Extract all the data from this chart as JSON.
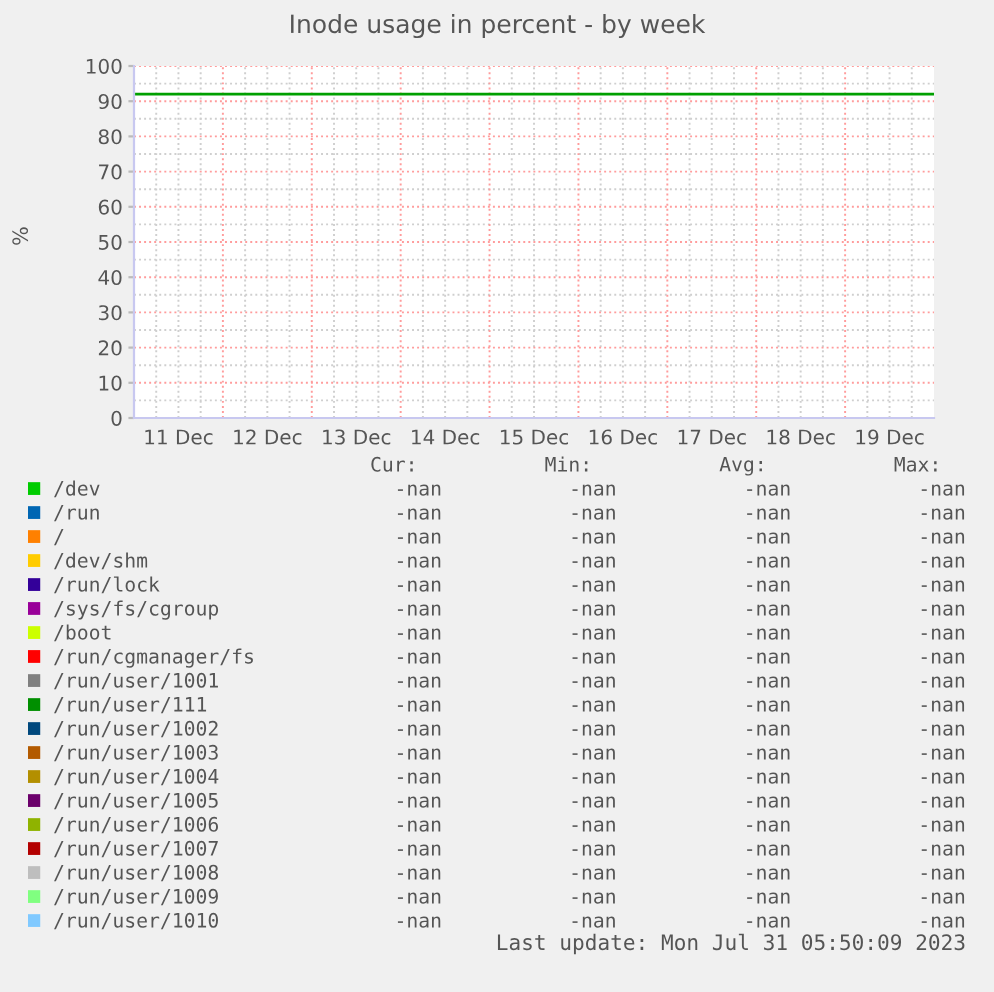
{
  "chart_data": {
    "type": "line",
    "title": "Inode usage in percent - by week",
    "ylabel": "%",
    "categories": [
      "11 Dec",
      "12 Dec",
      "13 Dec",
      "14 Dec",
      "15 Dec",
      "16 Dec",
      "17 Dec",
      "18 Dec",
      "19 Dec"
    ],
    "ylim": [
      0,
      100
    ],
    "yticks": [
      0,
      10,
      20,
      30,
      40,
      50,
      60,
      70,
      80,
      90,
      100
    ],
    "grid": true,
    "legend": "bottom",
    "ref_lines": [
      {
        "axis": "y",
        "value": 92,
        "color": "#00a000"
      }
    ],
    "series": [
      {
        "name": "/dev",
        "color": "#00cc00",
        "values": [
          null,
          null,
          null,
          null,
          null,
          null,
          null,
          null,
          null
        ]
      },
      {
        "name": "/run",
        "color": "#0066b3",
        "values": [
          null,
          null,
          null,
          null,
          null,
          null,
          null,
          null,
          null
        ]
      },
      {
        "name": "/",
        "color": "#ff8000",
        "values": [
          null,
          null,
          null,
          null,
          null,
          null,
          null,
          null,
          null
        ]
      },
      {
        "name": "/dev/shm",
        "color": "#ffcc00",
        "values": [
          null,
          null,
          null,
          null,
          null,
          null,
          null,
          null,
          null
        ]
      },
      {
        "name": "/run/lock",
        "color": "#330099",
        "values": [
          null,
          null,
          null,
          null,
          null,
          null,
          null,
          null,
          null
        ]
      },
      {
        "name": "/sys/fs/cgroup",
        "color": "#990099",
        "values": [
          null,
          null,
          null,
          null,
          null,
          null,
          null,
          null,
          null
        ]
      },
      {
        "name": "/boot",
        "color": "#ccff00",
        "values": [
          null,
          null,
          null,
          null,
          null,
          null,
          null,
          null,
          null
        ]
      },
      {
        "name": "/run/cgmanager/fs",
        "color": "#ff0000",
        "values": [
          null,
          null,
          null,
          null,
          null,
          null,
          null,
          null,
          null
        ]
      },
      {
        "name": "/run/user/1001",
        "color": "#808080",
        "values": [
          null,
          null,
          null,
          null,
          null,
          null,
          null,
          null,
          null
        ]
      },
      {
        "name": "/run/user/111",
        "color": "#008f00",
        "values": [
          null,
          null,
          null,
          null,
          null,
          null,
          null,
          null,
          null
        ]
      },
      {
        "name": "/run/user/1002",
        "color": "#00487d",
        "values": [
          null,
          null,
          null,
          null,
          null,
          null,
          null,
          null,
          null
        ]
      },
      {
        "name": "/run/user/1003",
        "color": "#b35a00",
        "values": [
          null,
          null,
          null,
          null,
          null,
          null,
          null,
          null,
          null
        ]
      },
      {
        "name": "/run/user/1004",
        "color": "#b38f00",
        "values": [
          null,
          null,
          null,
          null,
          null,
          null,
          null,
          null,
          null
        ]
      },
      {
        "name": "/run/user/1005",
        "color": "#6b006b",
        "values": [
          null,
          null,
          null,
          null,
          null,
          null,
          null,
          null,
          null
        ]
      },
      {
        "name": "/run/user/1006",
        "color": "#8fb300",
        "values": [
          null,
          null,
          null,
          null,
          null,
          null,
          null,
          null,
          null
        ]
      },
      {
        "name": "/run/user/1007",
        "color": "#b30000",
        "values": [
          null,
          null,
          null,
          null,
          null,
          null,
          null,
          null,
          null
        ]
      },
      {
        "name": "/run/user/1008",
        "color": "#bebebe",
        "values": [
          null,
          null,
          null,
          null,
          null,
          null,
          null,
          null,
          null
        ]
      },
      {
        "name": "/run/user/1009",
        "color": "#80ff80",
        "values": [
          null,
          null,
          null,
          null,
          null,
          null,
          null,
          null,
          null
        ]
      },
      {
        "name": "/run/user/1010",
        "color": "#80c9ff",
        "values": [
          null,
          null,
          null,
          null,
          null,
          null,
          null,
          null,
          null
        ]
      }
    ],
    "annotations": [
      "Cur:",
      "Min:",
      "Avg:",
      "Max:",
      "-nan",
      "-nan",
      "-nan",
      "-nan",
      "-nan",
      "-nan",
      "-nan",
      "-nan",
      "-nan",
      "-nan",
      "-nan",
      "-nan",
      "-nan",
      "-nan",
      "-nan",
      "-nan",
      "-nan",
      "-nan",
      "-nan",
      "-nan",
      "-nan",
      "-nan",
      "-nan",
      "-nan",
      "-nan",
      "-nan",
      "-nan",
      "-nan",
      "-nan",
      "-nan",
      "-nan",
      "-nan",
      "-nan",
      "-nan",
      "-nan",
      "-nan",
      "-nan",
      "-nan",
      "-nan",
      "-nan",
      "-nan",
      "-nan",
      "-nan",
      "-nan",
      "-nan",
      "-nan",
      "-nan",
      "-nan",
      "-nan",
      "-nan",
      "-nan",
      "-nan",
      "-nan",
      "-nan",
      "-nan",
      "-nan",
      "-nan",
      "-nan",
      "-nan",
      "-nan",
      "-nan",
      "-nan",
      "-nan",
      "-nan",
      "-nan",
      "-nan",
      "-nan",
      "-nan",
      "-nan",
      "-nan",
      "-nan",
      "-nan",
      "-nan",
      "-nan",
      "-nan",
      "-nan",
      "Last update: Mon Jul 31 05:50:09 2023"
    ]
  }
}
